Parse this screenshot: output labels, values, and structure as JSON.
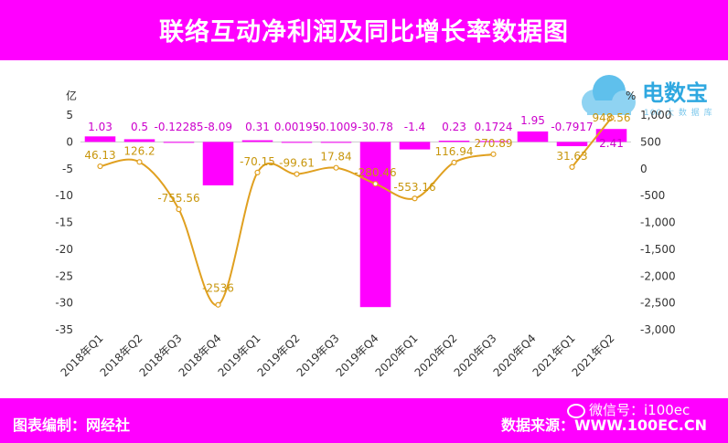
{
  "header": {
    "title": "联络互动净利润及同比增长率数据图"
  },
  "footer": {
    "left": "图表编制：网经社",
    "right": "数据来源：WWW.100EC.CN",
    "wechat": "微信号：i100ec"
  },
  "logo": {
    "name": "电数宝",
    "sub": "100 大 数 据 库"
  },
  "colors": {
    "header": "#ff00ff",
    "bar": "#ff00ff",
    "line": "#e0a020",
    "logo": "#2fa8e0"
  },
  "chart_data": {
    "type": "bar",
    "categories": [
      "2018年Q1",
      "2018年Q2",
      "2018年Q3",
      "2018年Q4",
      "2019年Q1",
      "2019年Q2",
      "2019年Q3",
      "2019年Q4",
      "2020年Q1",
      "2020年Q2",
      "2020年Q3",
      "2020年Q4",
      "2021年Q1",
      "2021年Q2"
    ],
    "left_axis_unit": "亿",
    "right_axis_unit": "%",
    "ylim": [
      -35,
      5
    ],
    "yticks": [
      5,
      0,
      -5,
      -10,
      -15,
      -20,
      -25,
      -30,
      -35
    ],
    "y2lim": [
      -3000,
      1000
    ],
    "y2ticks": [
      1000,
      500,
      0,
      -500,
      -1000,
      -1500,
      -2000,
      -2500,
      -3000
    ],
    "y2tick_labels": [
      "1,000",
      "500",
      "0",
      "-500",
      "-1,000",
      "-1,500",
      "-2,000",
      "-2,500",
      "-3,000"
    ],
    "bars": {
      "values": [
        1.03,
        0.5,
        -0.12285,
        -8.09,
        0.31,
        0.00195,
        -0.1009,
        -30.78,
        -1.4,
        0.23,
        0.1724,
        1.95,
        -0.7917,
        2.41
      ],
      "labels": [
        "1.03",
        "0.5",
        "-0.12285",
        "-8.09",
        "0.31",
        "0.00195",
        "-0.1009",
        "-30.78",
        "-1.4",
        "0.23",
        "0.1724",
        "1.95",
        "-0.7917",
        "2.41"
      ]
    },
    "line_segments": [
      {
        "values": [
          46.13,
          126.2,
          -755.56,
          -2536,
          -70.15,
          -99.61,
          17.84,
          -280.46,
          -553.16,
          116.94,
          270.89
        ],
        "start_index": 0,
        "labels": [
          "46.13",
          "126.2",
          "-755.56",
          "-2536",
          "-70.15",
          "-99.61",
          "17.84",
          "-280.46",
          "-553.16",
          "116.94",
          "270.89"
        ]
      },
      {
        "values": [
          31.63,
          948.56
        ],
        "start_index": 12,
        "labels": [
          "31.63",
          "948.56"
        ]
      }
    ]
  }
}
